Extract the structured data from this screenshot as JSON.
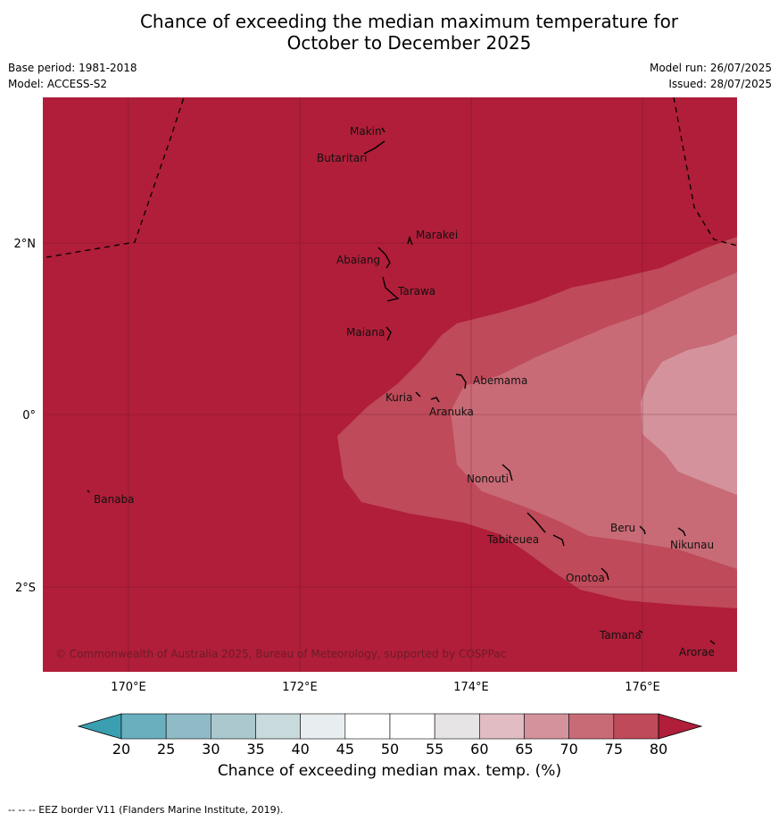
{
  "title_line1": "Chance of exceeding the median maximum temperature for",
  "title_line2": "October to December 2025",
  "meta": {
    "base_period": "Base period: 1981-2018",
    "model": "Model: ACCESS-S2",
    "model_run": "Model run: 26/07/2025",
    "issued": "Issued: 28/07/2025"
  },
  "map": {
    "lon_ticks": [
      "170°E",
      "172°E",
      "174°E",
      "176°E"
    ],
    "lat_ticks": [
      "2°N",
      "0°",
      "2°S"
    ],
    "places": {
      "makin": "Makin",
      "butaritari": "Butaritari",
      "marakei": "Marakei",
      "abaiang": "Abaiang",
      "tarawa": "Tarawa",
      "maiana": "Maiana",
      "abemama": "Abemama",
      "kuria": "Kuria",
      "aranuka": "Aranuka",
      "nonouti": "Nonouti",
      "banaba": "Banaba",
      "beru": "Beru",
      "nikunau": "Nikunau",
      "tabiteuea": "Tabiteuea",
      "onotoa": "Onotoa",
      "tamana": "Tamana",
      "arorae": "Arorae"
    },
    "copyright": "© Commonwealth of Australia 2025, Bureau of Meteorology, supported by COSPPac"
  },
  "colorbar": {
    "labels": [
      "20",
      "25",
      "30",
      "35",
      "40",
      "45",
      "50",
      "55",
      "60",
      "65",
      "70",
      "75",
      "80"
    ],
    "colors": [
      "#6aafbe",
      "#8fbbc6",
      "#aac8ce",
      "#c9dadd",
      "#e8edef",
      "#ffffff",
      "#ffffff",
      "#e6e4e5",
      "#e1bcc3",
      "#d4929c",
      "#c86b76",
      "#bf4a59"
    ],
    "under_color": "#3a9fb0",
    "over_color": "#b01e39",
    "title": "Chance of exceeding median max. temp. (%)"
  },
  "eez_note": "--  --  -- EEZ border V11 (Flanders Marine Institute, 2019)."
}
